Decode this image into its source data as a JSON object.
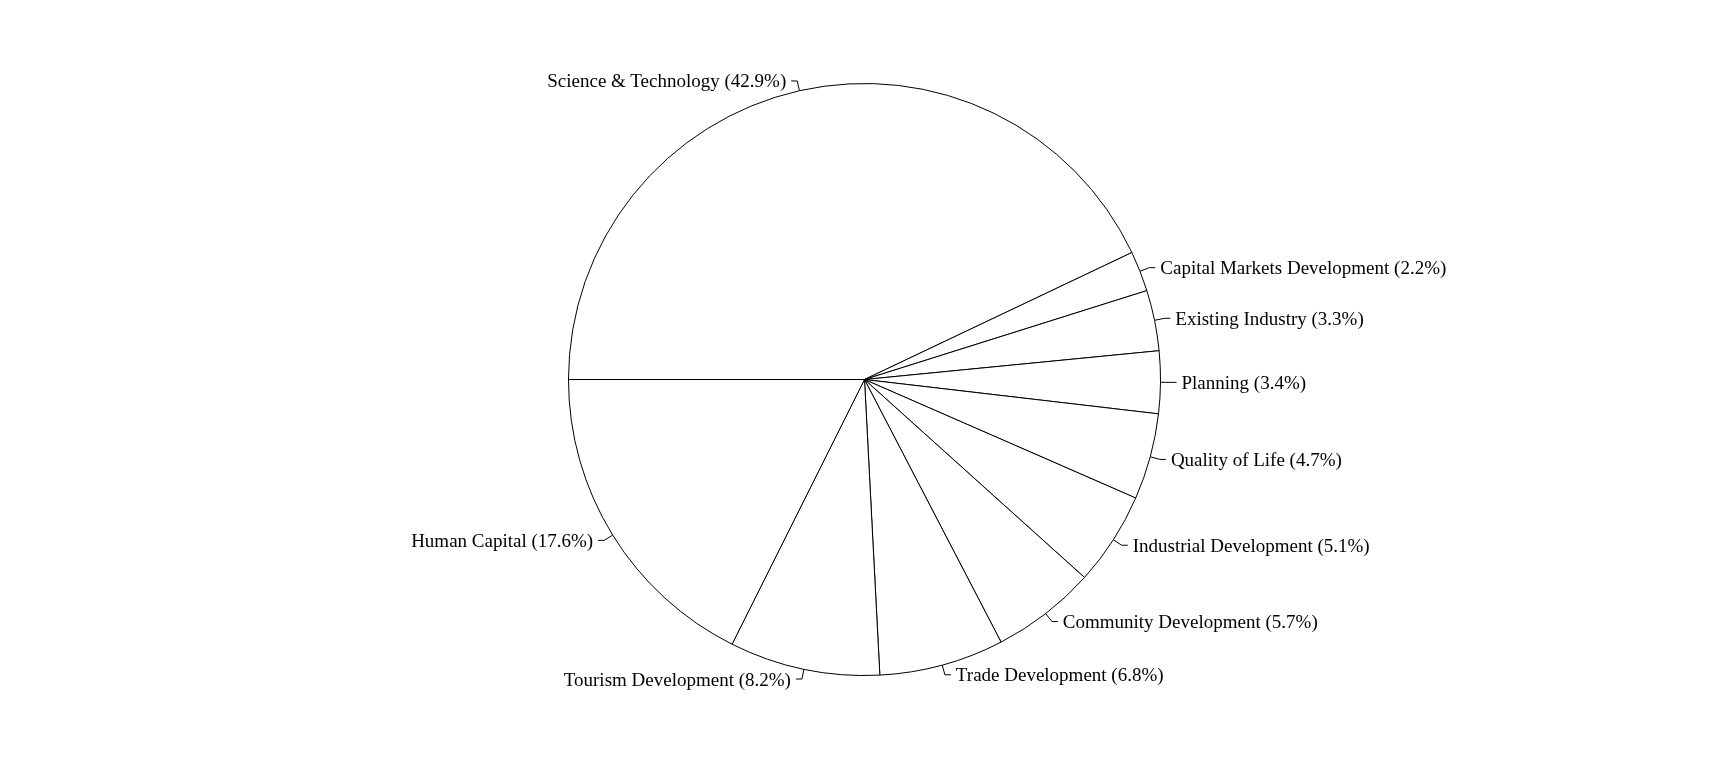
{
  "chart_data": {
    "type": "pie",
    "categories": [
      "Science & Technology (42.9%)",
      "Capital Markets Development (2.2%)",
      "Existing Industry (3.3%)",
      "Planning (3.4%)",
      "Quality of Life (4.7%)",
      "Industrial Development (5.1%)",
      "Community Development (5.7%)",
      "Trade Development (6.8%)",
      "Tourism Development (8.2%)",
      "Human Capital (17.6%)"
    ],
    "values": [
      42.9,
      2.2,
      3.3,
      3.4,
      4.7,
      5.1,
      5.7,
      6.8,
      8.2,
      17.6
    ],
    "colors": [
      "#ffffff",
      "#ffffff",
      "#ffffff",
      "#ffffff",
      "#ffffff",
      "#ffffff",
      "#ffffff",
      "#ffffff",
      "#ffffff",
      "#ffffff"
    ],
    "legend": false
  }
}
